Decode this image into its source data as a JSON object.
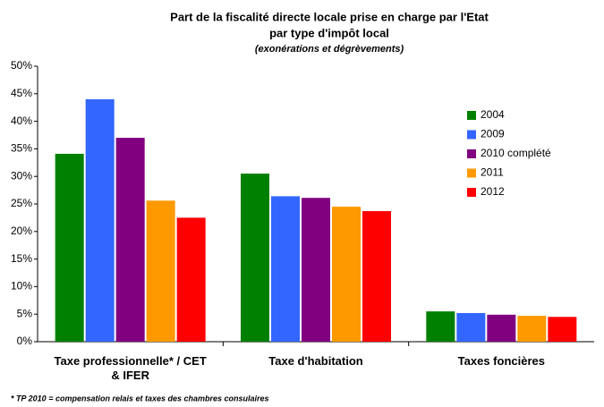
{
  "chart_data": {
    "type": "bar",
    "title": [
      "Part de la fiscalité directe locale prise en charge par l'Etat",
      "par type d'impôt local"
    ],
    "subtitle": "(exonérations et dégrèvements)",
    "categories": [
      "Taxe professionnelle* / CET\n& IFER",
      "Taxe d'habitation",
      "Taxes foncières"
    ],
    "series": [
      {
        "name": "2004",
        "color": "#008000",
        "values": [
          34.1,
          30.5,
          5.5
        ]
      },
      {
        "name": "2009",
        "color": "#3366ff",
        "values": [
          44,
          26.4,
          5.2
        ]
      },
      {
        "name": "2010 complété",
        "color": "#800080",
        "values": [
          37,
          26.1,
          4.9
        ]
      },
      {
        "name": "2011",
        "color": "#ff9900",
        "values": [
          25.6,
          24.5,
          4.7
        ]
      },
      {
        "name": "2012",
        "color": "#ff0000",
        "values": [
          22.5,
          23.7,
          4.5
        ]
      }
    ],
    "ylim": [
      0,
      50
    ],
    "yticks": [
      {
        "value": 0,
        "label": "0%"
      },
      {
        "value": 5,
        "label": "5%"
      },
      {
        "value": 10,
        "label": "10%"
      },
      {
        "value": 15,
        "label": "15%"
      },
      {
        "value": 20,
        "label": "20%"
      },
      {
        "value": 25,
        "label": "25%"
      },
      {
        "value": 30,
        "label": "30%"
      },
      {
        "value": 35,
        "label": "35%"
      },
      {
        "value": 40,
        "label": "40%"
      },
      {
        "value": 45,
        "label": "45%"
      },
      {
        "value": 50,
        "label": "50%"
      }
    ],
    "grid": false,
    "legend": "upper right",
    "footnote": "*  TP 2010  = compensation relais et taxes des chambres consulaires"
  }
}
